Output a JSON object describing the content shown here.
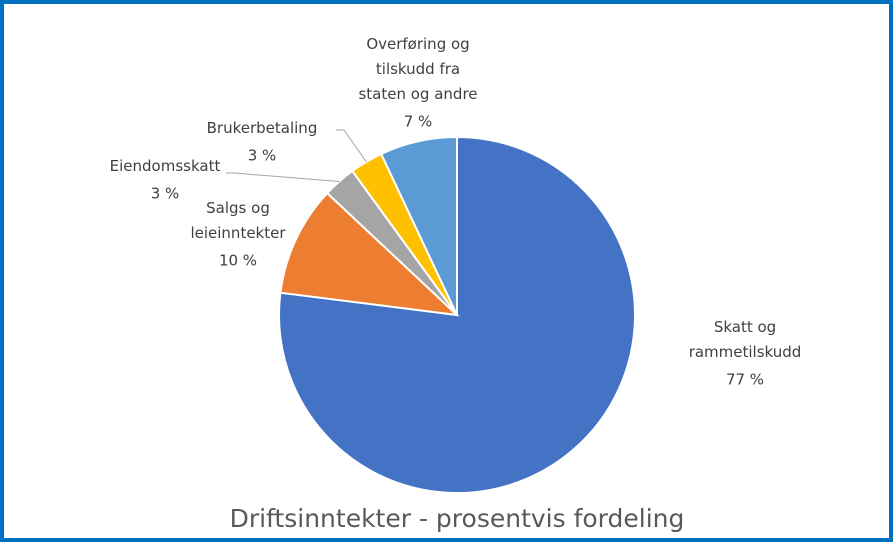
{
  "chart_data": {
    "type": "pie",
    "title": "Driftsinntekter - prosentvis fordeling",
    "categories": [
      "Skatt og rammetilskudd",
      "Salgs og leieinntekter",
      "Eiendomsskatt",
      "Brukerbetaling",
      "Overføring og tilskudd fra staten og andre"
    ],
    "values": [
      77,
      10,
      3,
      3,
      7
    ],
    "value_labels": [
      "77 %",
      "10 %",
      "3 %",
      "3 %",
      "7 %"
    ],
    "colors": [
      "#4472c4",
      "#ed7d31",
      "#a5a5a5",
      "#ffc000",
      "#5b9bd5"
    ]
  }
}
